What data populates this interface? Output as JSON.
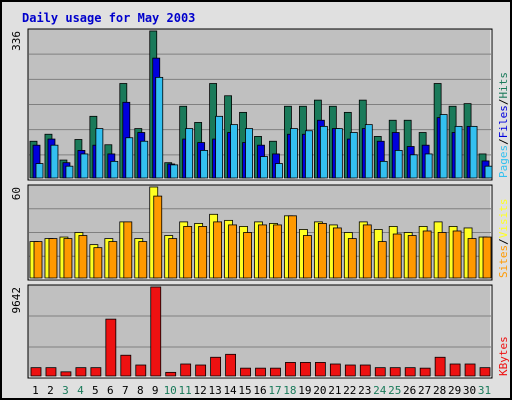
{
  "title": "Daily usage for May 2003",
  "colors": {
    "hits": "#1a7a5a",
    "files": "#0000dd",
    "pages": "#33c0f0",
    "visits": "#ffff22",
    "sites": "#ff9900",
    "kbytes": "#ee1111",
    "weekday_label": "#000000",
    "weekend_label": "#1a7a5a",
    "panel_bg": "#c0c0c0",
    "frame_bg": "#e0e0e0",
    "grid": "#808080"
  },
  "chart_data": [
    {
      "type": "bar",
      "panel": "hits-files-pages",
      "categories": [
        "1",
        "2",
        "3",
        "4",
        "5",
        "6",
        "7",
        "8",
        "9",
        "10",
        "11",
        "12",
        "13",
        "14",
        "15",
        "16",
        "17",
        "18",
        "19",
        "20",
        "21",
        "22",
        "23",
        "24",
        "25",
        "26",
        "27",
        "28",
        "29",
        "30",
        "31"
      ],
      "ymax_label": "336",
      "ylim": [
        0,
        336
      ],
      "series": [
        {
          "name": "Hits",
          "values": [
            84,
            100,
            41,
            88,
            141,
            76,
            216,
            113,
            336,
            35,
            164,
            127,
            216,
            188,
            150,
            95,
            84,
            164,
            164,
            178,
            164,
            150,
            178,
            95,
            132,
            132,
            104,
            216,
            164,
            170,
            55
          ]
        },
        {
          "name": "Files",
          "values": [
            75,
            89,
            35,
            63,
            75,
            55,
            173,
            104,
            274,
            32,
            89,
            81,
            89,
            104,
            81,
            75,
            55,
            100,
            100,
            132,
            113,
            89,
            113,
            84,
            104,
            72,
            75,
            138,
            104,
            118,
            39
          ]
        },
        {
          "name": "Pages",
          "values": [
            33,
            75,
            27,
            55,
            113,
            38,
            92,
            84,
            230,
            30,
            113,
            63,
            141,
            122,
            113,
            49,
            33,
            113,
            108,
            118,
            113,
            104,
            122,
            38,
            63,
            53,
            55,
            145,
            118,
            118,
            27
          ]
        }
      ],
      "legend": [
        "Pages",
        "Files",
        "Hits"
      ]
    },
    {
      "type": "bar",
      "panel": "visits-sites",
      "categories": [
        "1",
        "2",
        "3",
        "4",
        "5",
        "6",
        "7",
        "8",
        "9",
        "10",
        "11",
        "12",
        "13",
        "14",
        "15",
        "16",
        "17",
        "18",
        "19",
        "20",
        "21",
        "22",
        "23",
        "24",
        "25",
        "26",
        "27",
        "28",
        "29",
        "30",
        "31"
      ],
      "ymax_label": "60",
      "ylim": [
        0,
        60
      ],
      "series": [
        {
          "name": "Visits",
          "values": [
            24,
            26,
            27,
            30,
            22,
            26,
            37,
            26,
            60,
            28,
            37,
            36,
            42,
            38,
            34,
            37,
            36,
            41,
            32,
            37,
            35,
            30,
            37,
            32,
            34,
            30,
            34,
            37,
            34,
            33,
            27
          ]
        },
        {
          "name": "Sites",
          "values": [
            24,
            26,
            26,
            28,
            20,
            24,
            37,
            24,
            54,
            26,
            34,
            34,
            37,
            35,
            30,
            35,
            35,
            41,
            28,
            36,
            33,
            26,
            35,
            24,
            29,
            28,
            31,
            30,
            31,
            26,
            27
          ]
        }
      ],
      "legend": [
        "Sites",
        "Visits"
      ]
    },
    {
      "type": "bar",
      "panel": "kbytes",
      "categories": [
        "1",
        "2",
        "3",
        "4",
        "5",
        "6",
        "7",
        "8",
        "9",
        "10",
        "11",
        "12",
        "13",
        "14",
        "15",
        "16",
        "17",
        "18",
        "19",
        "20",
        "21",
        "22",
        "23",
        "24",
        "25",
        "26",
        "27",
        "28",
        "29",
        "30",
        "31"
      ],
      "ymax_label": "9642",
      "ylim": [
        0,
        9642
      ],
      "series": [
        {
          "name": "KBytes",
          "values": [
            904,
            904,
            452,
            904,
            904,
            6160,
            2250,
            1190,
            9642,
            395,
            1300,
            1190,
            2030,
            2350,
            850,
            850,
            850,
            1470,
            1470,
            1470,
            1300,
            1190,
            1190,
            904,
            904,
            904,
            850,
            2030,
            1300,
            1300,
            904
          ]
        }
      ],
      "legend": [
        "KBytes"
      ]
    }
  ],
  "x_labels": [
    {
      "label": "1",
      "weekend": false
    },
    {
      "label": "2",
      "weekend": false
    },
    {
      "label": "3",
      "weekend": true
    },
    {
      "label": "4",
      "weekend": true
    },
    {
      "label": "5",
      "weekend": false
    },
    {
      "label": "6",
      "weekend": false
    },
    {
      "label": "7",
      "weekend": false
    },
    {
      "label": "8",
      "weekend": false
    },
    {
      "label": "9",
      "weekend": false
    },
    {
      "label": "10",
      "weekend": true
    },
    {
      "label": "11",
      "weekend": true
    },
    {
      "label": "12",
      "weekend": false
    },
    {
      "label": "13",
      "weekend": false
    },
    {
      "label": "14",
      "weekend": false
    },
    {
      "label": "15",
      "weekend": false
    },
    {
      "label": "16",
      "weekend": false
    },
    {
      "label": "17",
      "weekend": true
    },
    {
      "label": "18",
      "weekend": true
    },
    {
      "label": "19",
      "weekend": false
    },
    {
      "label": "20",
      "weekend": false
    },
    {
      "label": "21",
      "weekend": false
    },
    {
      "label": "22",
      "weekend": false
    },
    {
      "label": "23",
      "weekend": false
    },
    {
      "label": "24",
      "weekend": true
    },
    {
      "label": "25",
      "weekend": true
    },
    {
      "label": "26",
      "weekend": false
    },
    {
      "label": "27",
      "weekend": false
    },
    {
      "label": "28",
      "weekend": false
    },
    {
      "label": "29",
      "weekend": false
    },
    {
      "label": "30",
      "weekend": false
    },
    {
      "label": "31",
      "weekend": true
    }
  ]
}
